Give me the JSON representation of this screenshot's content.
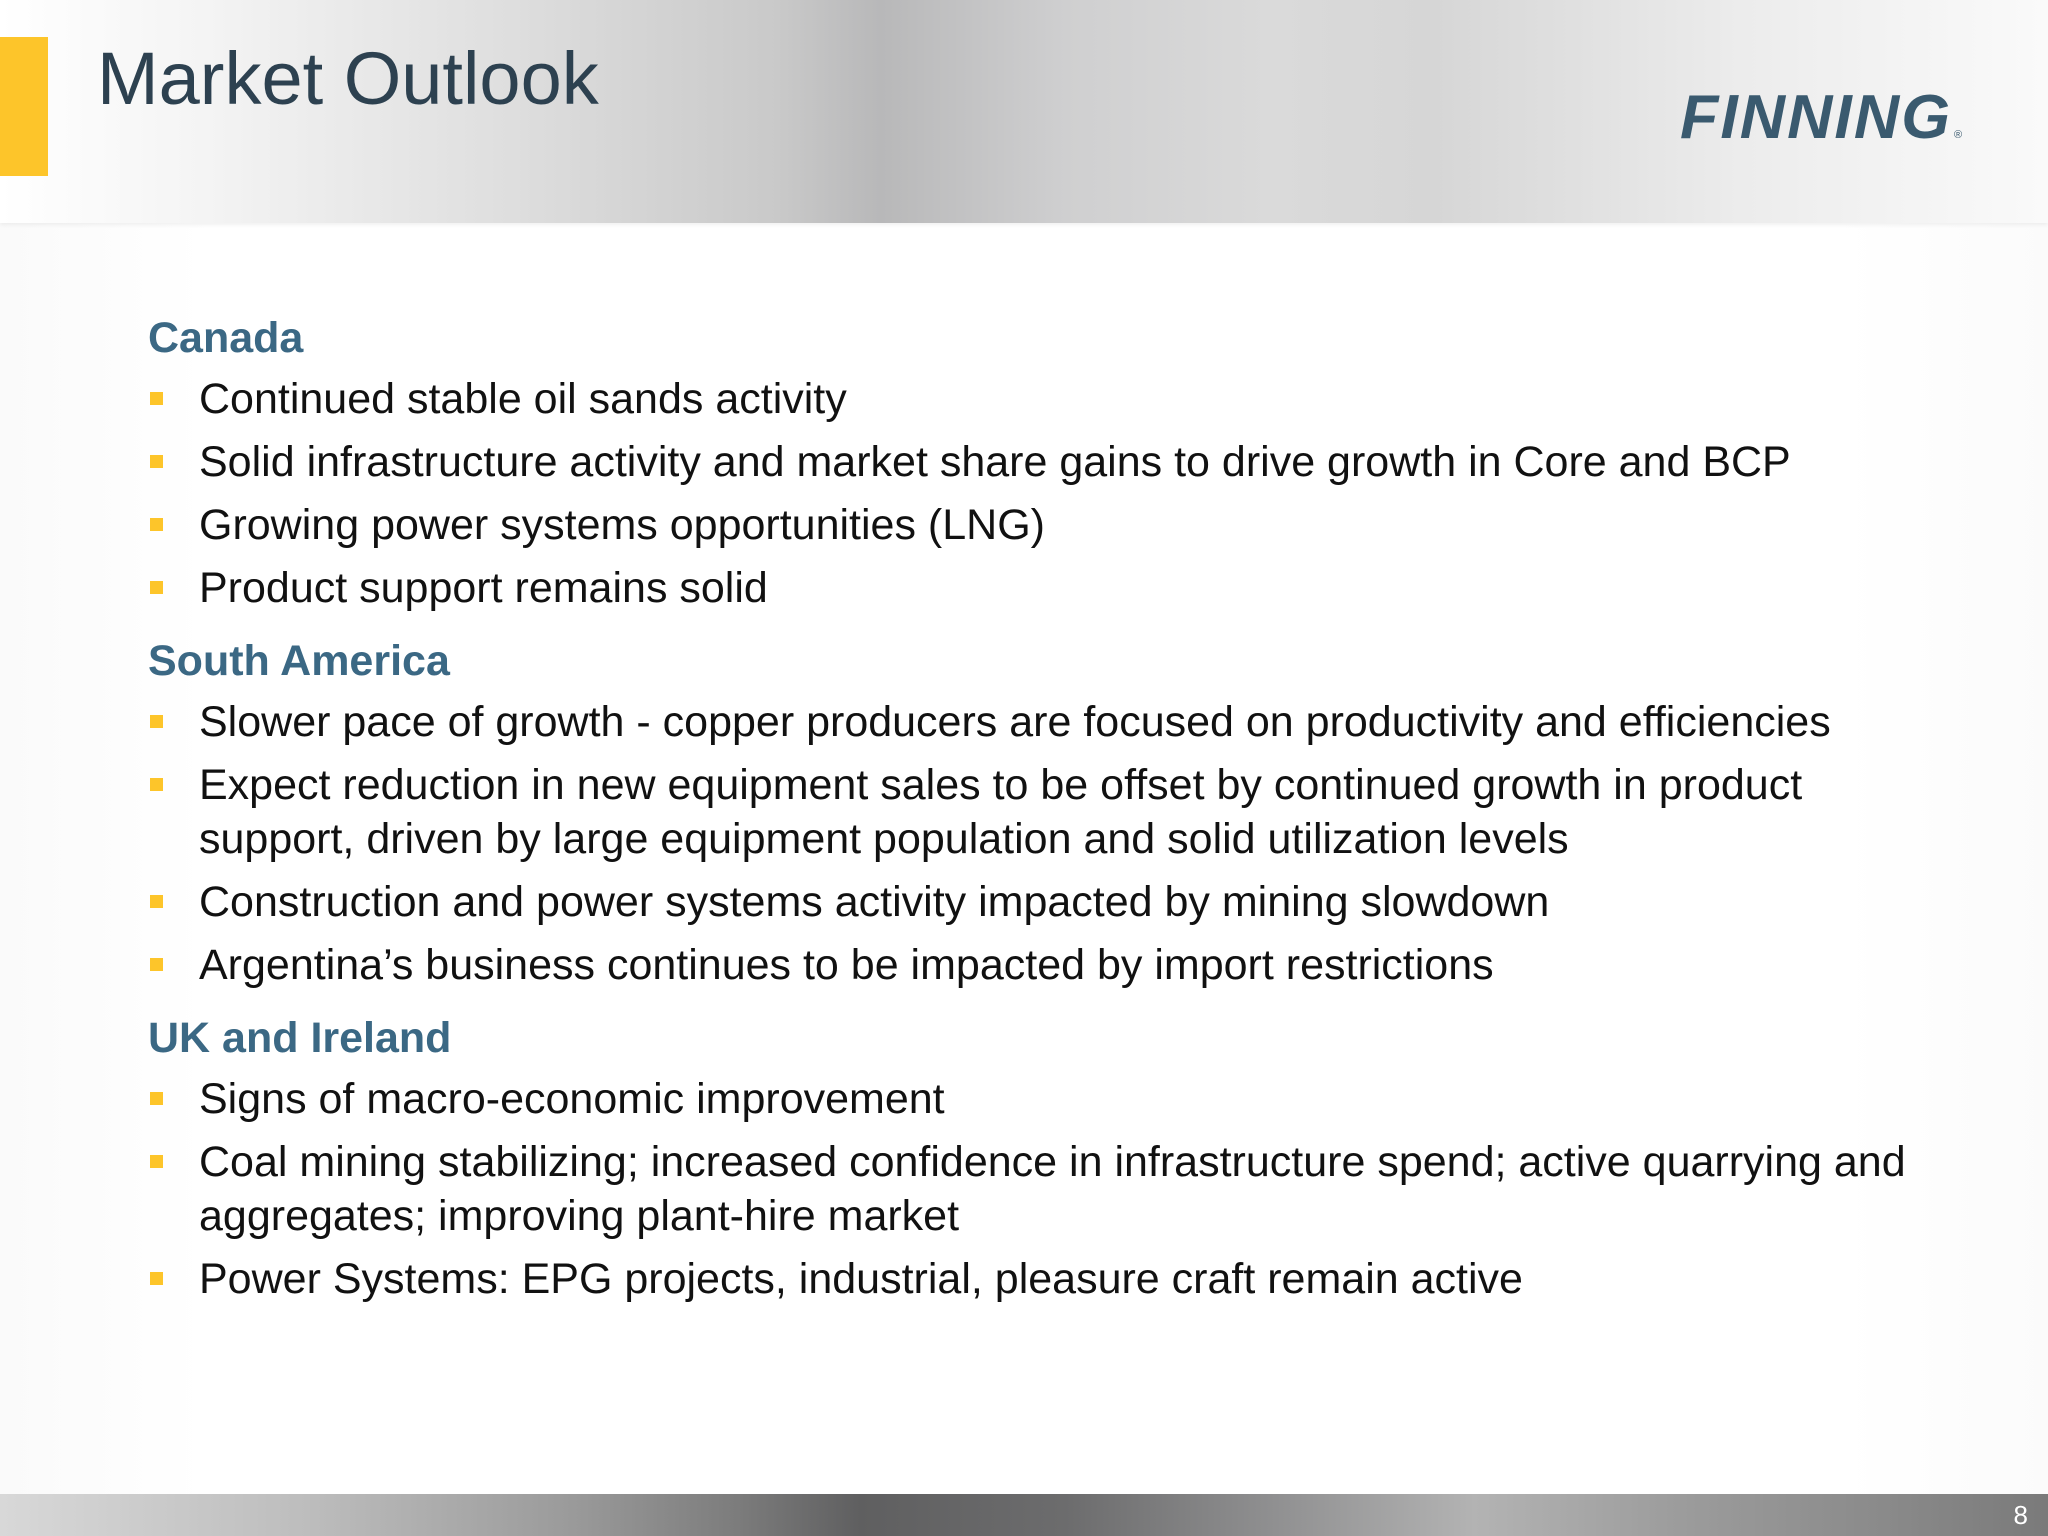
{
  "header": {
    "title": "Market Outlook",
    "logo_text": "FINNING",
    "logo_mark": "®"
  },
  "colors": {
    "accent": "#fdc52a",
    "title": "#2d4150",
    "heading": "#3b6884",
    "body_text": "#111111",
    "logo": "#3a5a6f"
  },
  "sections": [
    {
      "heading": "Canada",
      "bullets": [
        "Continued stable oil sands activity",
        "Solid infrastructure activity and market share gains to drive growth in Core and BCP",
        "Growing power systems opportunities (LNG)",
        "Product support remains solid"
      ]
    },
    {
      "heading": "South America",
      "bullets": [
        "Slower pace of growth - copper producers are focused on productivity and efficiencies",
        "Expect reduction in new equipment sales to be offset by continued growth in product support, driven by large equipment population and solid utilization levels",
        "Construction and power systems activity impacted by mining slowdown",
        "Argentina’s business continues to be impacted by import restrictions"
      ]
    },
    {
      "heading": "UK and Ireland",
      "bullets": [
        "Signs of macro-economic improvement",
        "Coal mining stabilizing; increased confidence in infrastructure spend; active quarrying and aggregates; improving plant-hire market",
        "Power Systems: EPG projects, industrial, pleasure craft remain active"
      ]
    }
  ],
  "footer": {
    "page_number": "8"
  }
}
